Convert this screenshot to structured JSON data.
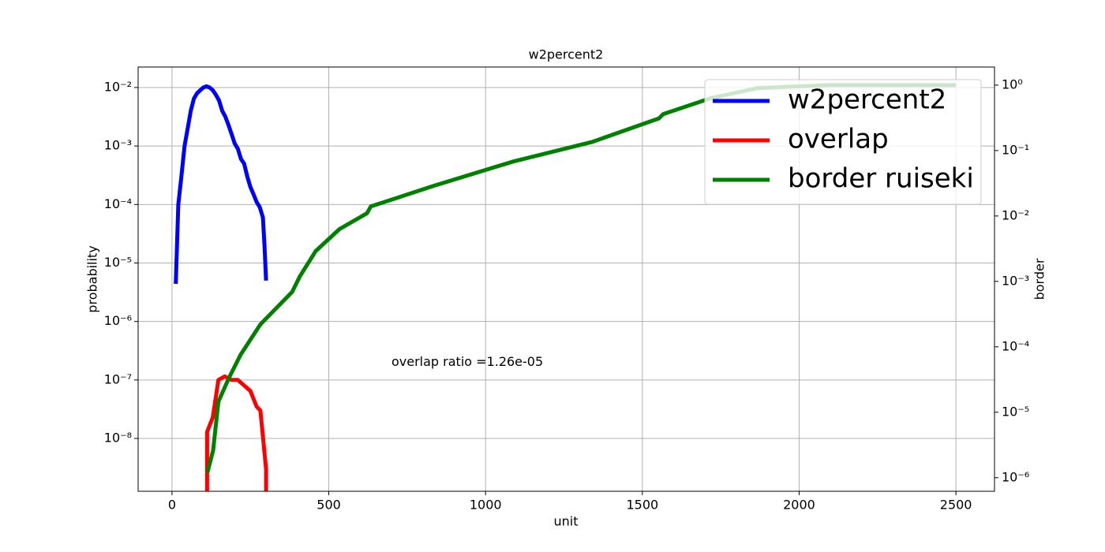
{
  "chart_data": {
    "type": "line",
    "title": "w2percent2",
    "xlabel": "unit",
    "ylabel": "probability",
    "y2label": "border",
    "xlim": [
      -108,
      2623
    ],
    "xticks": [
      0,
      500,
      1000,
      1500,
      2000,
      2500
    ],
    "ylim": [
      1.25e-09,
      0.0224
    ],
    "yscale": "log",
    "yticks": [
      {
        "value": 1e-08,
        "label": "10⁻⁸"
      },
      {
        "value": 1e-07,
        "label": "10⁻⁷"
      },
      {
        "value": 1e-06,
        "label": "10⁻⁶"
      },
      {
        "value": 1e-05,
        "label": "10⁻⁵"
      },
      {
        "value": 0.0001,
        "label": "10⁻⁴"
      },
      {
        "value": 0.001,
        "label": "10⁻³"
      },
      {
        "value": 0.01,
        "label": "10⁻²"
      }
    ],
    "y2lim": [
      6.2e-07,
      1.89
    ],
    "y2scale": "log",
    "y2ticks": [
      {
        "value": 1e-06,
        "label": "10⁻⁶"
      },
      {
        "value": 1e-05,
        "label": "10⁻⁵"
      },
      {
        "value": 0.0001,
        "label": "10⁻⁴"
      },
      {
        "value": 0.001,
        "label": "10⁻³"
      },
      {
        "value": 0.01,
        "label": "10⁻²"
      },
      {
        "value": 0.1,
        "label": "10⁻¹"
      },
      {
        "value": 1,
        "label": "10⁰"
      }
    ],
    "grid": true,
    "legend": "upper right",
    "annotation": {
      "text": "overlap ratio =1.26e-05",
      "x": 700,
      "y": 2e-07
    },
    "series": [
      {
        "name": "w2percent2",
        "color": "#0000ff",
        "x": [
          12,
          20,
          30,
          40,
          50,
          60,
          70,
          80,
          90,
          100,
          110,
          120,
          130,
          140,
          150,
          160,
          170,
          180,
          190,
          200,
          210,
          220,
          230,
          240,
          250,
          260,
          270,
          280,
          290,
          295,
          300
        ],
        "values": [
          4.4e-06,
          0.0001,
          0.0003,
          0.001,
          0.002,
          0.004,
          0.0065,
          0.008,
          0.009,
          0.01,
          0.0105,
          0.01,
          0.009,
          0.0075,
          0.006,
          0.004,
          0.0032,
          0.0023,
          0.0016,
          0.0011,
          0.0009,
          0.0006,
          0.0005,
          0.0003,
          0.0002,
          0.00015,
          0.00011,
          9e-05,
          6e-05,
          2e-05,
          5e-06
        ]
      },
      {
        "name": "overlap",
        "color": "#ff0000",
        "x": [
          112,
          112,
          130,
          148,
          168,
          190,
          210,
          250,
          270,
          282,
          300,
          300
        ],
        "values": [
          1e-09,
          1.3e-08,
          2.3e-08,
          1e-07,
          1.15e-07,
          1e-07,
          1e-07,
          6.5e-08,
          3.5e-08,
          3e-08,
          3e-09,
          1e-09
        ]
      },
      {
        "name": "border ruiseki",
        "color": "#008000",
        "axis": "y2",
        "x": [
          113,
          131,
          148,
          181,
          219,
          282,
          383,
          408,
          458,
          534,
          622,
          634,
          836,
          1088,
          1339,
          1553,
          1566,
          1717,
          1868,
          2095,
          2500
        ],
        "values": [
          1.2e-06,
          2.6e-06,
          1.45e-05,
          3.3e-05,
          7.6e-05,
          0.00022,
          0.00069,
          0.0012,
          0.0029,
          0.0063,
          0.011,
          0.014,
          0.029,
          0.068,
          0.135,
          0.31,
          0.36,
          0.63,
          0.9,
          1.0,
          1.0
        ]
      }
    ]
  }
}
